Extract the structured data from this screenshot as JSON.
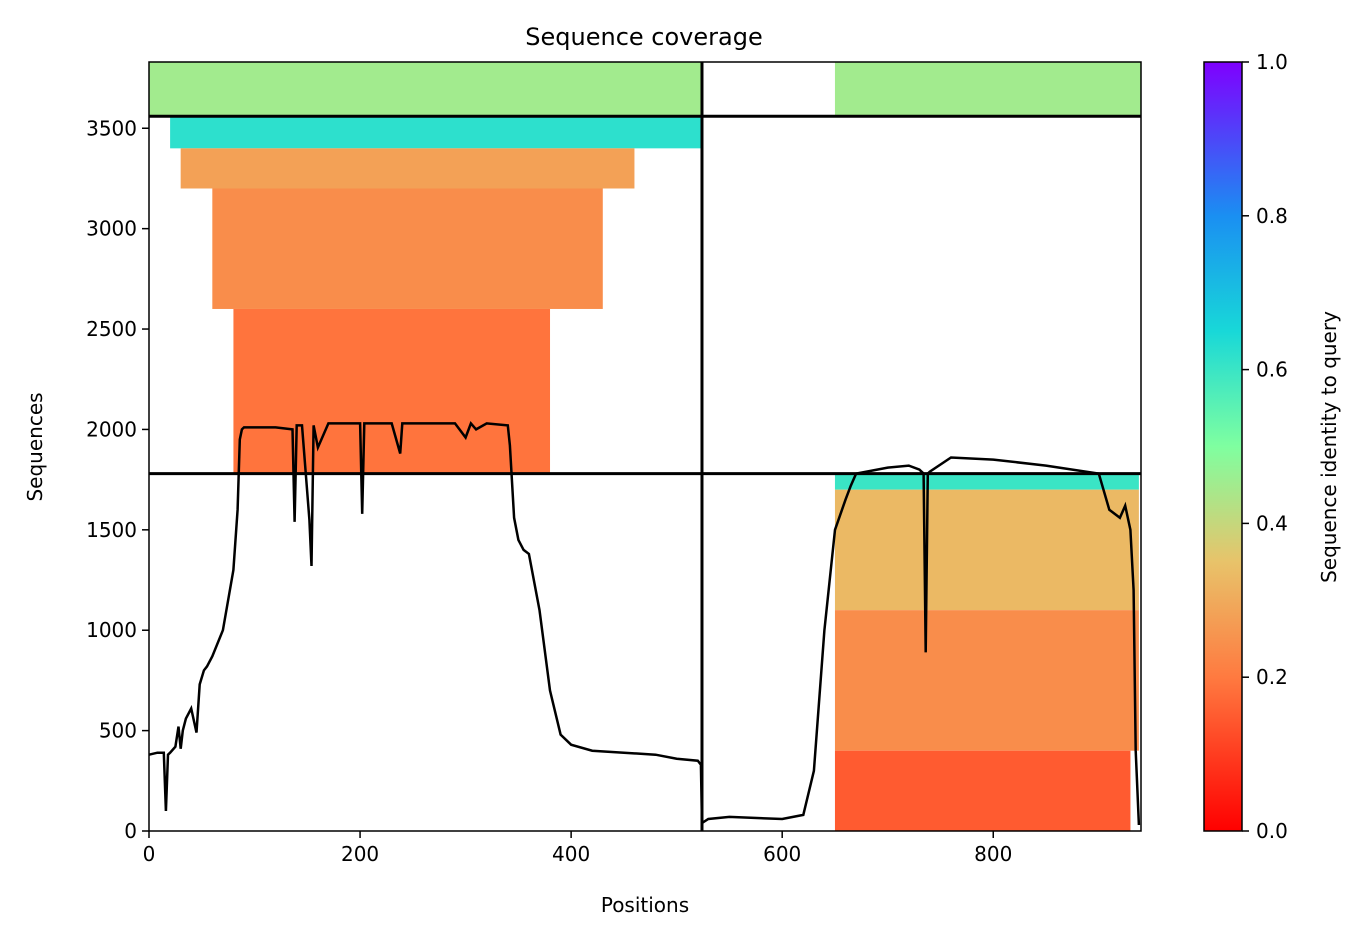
{
  "chart_data": {
    "type": "heatmap",
    "title": "Sequence coverage",
    "xlabel": "Positions",
    "ylabel": "Sequences",
    "xlim": [
      0,
      940
    ],
    "ylim": [
      0,
      3830
    ],
    "x_ticks": [
      0,
      200,
      400,
      600,
      800
    ],
    "y_ticks": [
      0,
      500,
      1000,
      1500,
      2000,
      2500,
      3000,
      3500
    ],
    "x_tick_labels": [
      "0",
      "200",
      "400",
      "600",
      "800"
    ],
    "y_tick_labels": [
      "0",
      "500",
      "1000",
      "1500",
      "2000",
      "2500",
      "3000",
      "3500"
    ],
    "colorbar": {
      "label": "Sequence identity to query",
      "range": [
        0.0,
        1.0
      ],
      "ticks": [
        0.0,
        0.2,
        0.4,
        0.6,
        0.8,
        1.0
      ],
      "tick_labels": [
        "0.0",
        "0.2",
        "0.4",
        "0.6",
        "0.8",
        "1.0"
      ],
      "colormap": "rainbow_r"
    },
    "chain_boundary_x": 524,
    "block_boundaries_y": [
      1780,
      3560
    ],
    "coverage_blocks": [
      {
        "x_start": 0,
        "x_end": 524,
        "y_start": 3560,
        "y_end": 3830,
        "identity": 0.45
      },
      {
        "x_start": 650,
        "x_end": 940,
        "y_start": 3560,
        "y_end": 3830,
        "identity": 0.45
      },
      {
        "x_start": 20,
        "x_end": 524,
        "y_start": 3400,
        "y_end": 3560,
        "identity": 0.62
      },
      {
        "x_start": 30,
        "x_end": 460,
        "y_start": 3200,
        "y_end": 3400,
        "identity": 0.28
      },
      {
        "x_start": 60,
        "x_end": 430,
        "y_start": 2600,
        "y_end": 3200,
        "identity": 0.24
      },
      {
        "x_start": 80,
        "x_end": 380,
        "y_start": 1780,
        "y_end": 2600,
        "identity": 0.19
      },
      {
        "x_start": 650,
        "x_end": 938,
        "y_start": 1700,
        "y_end": 1780,
        "identity": 0.6
      },
      {
        "x_start": 650,
        "x_end": 938,
        "y_start": 1100,
        "y_end": 1700,
        "identity": 0.33
      },
      {
        "x_start": 650,
        "x_end": 938,
        "y_start": 400,
        "y_end": 1100,
        "identity": 0.24
      },
      {
        "x_start": 650,
        "x_end": 930,
        "y_start": 0,
        "y_end": 400,
        "identity": 0.15
      }
    ],
    "coverage_line": {
      "x": [
        0,
        8,
        14,
        16,
        18,
        20,
        25,
        28,
        30,
        32,
        35,
        40,
        45,
        48,
        52,
        55,
        60,
        70,
        80,
        84,
        86,
        88,
        90,
        100,
        120,
        136,
        138,
        140,
        145,
        152,
        154,
        156,
        160,
        170,
        200,
        202,
        204,
        210,
        230,
        238,
        240,
        242,
        260,
        290,
        300,
        305,
        310,
        320,
        340,
        342,
        346,
        350,
        355,
        360,
        370,
        380,
        390,
        400,
        420,
        450,
        480,
        500,
        520,
        523,
        524,
        530,
        550,
        600,
        620,
        630,
        640,
        650,
        660,
        665,
        670,
        700,
        720,
        730,
        734,
        736,
        738,
        740,
        760,
        800,
        850,
        900,
        910,
        920,
        925,
        930,
        933,
        935,
        938
      ],
      "y": [
        380,
        390,
        390,
        100,
        380,
        390,
        420,
        520,
        410,
        500,
        560,
        610,
        490,
        730,
        800,
        820,
        870,
        1000,
        1300,
        1600,
        1950,
        2000,
        2010,
        2010,
        2010,
        2000,
        1540,
        2020,
        2020,
        1550,
        1320,
        2020,
        1910,
        2030,
        2030,
        1580,
        2030,
        2030,
        2030,
        1880,
        2030,
        2030,
        2030,
        2030,
        1960,
        2030,
        2000,
        2030,
        2020,
        1920,
        1560,
        1450,
        1400,
        1380,
        1100,
        700,
        480,
        430,
        400,
        390,
        380,
        360,
        350,
        330,
        40,
        60,
        70,
        60,
        80,
        300,
        1000,
        1500,
        1650,
        1720,
        1780,
        1810,
        1820,
        1800,
        1780,
        890,
        1780,
        1790,
        1860,
        1850,
        1820,
        1780,
        1600,
        1560,
        1620,
        1500,
        1200,
        400,
        30
      ]
    }
  }
}
